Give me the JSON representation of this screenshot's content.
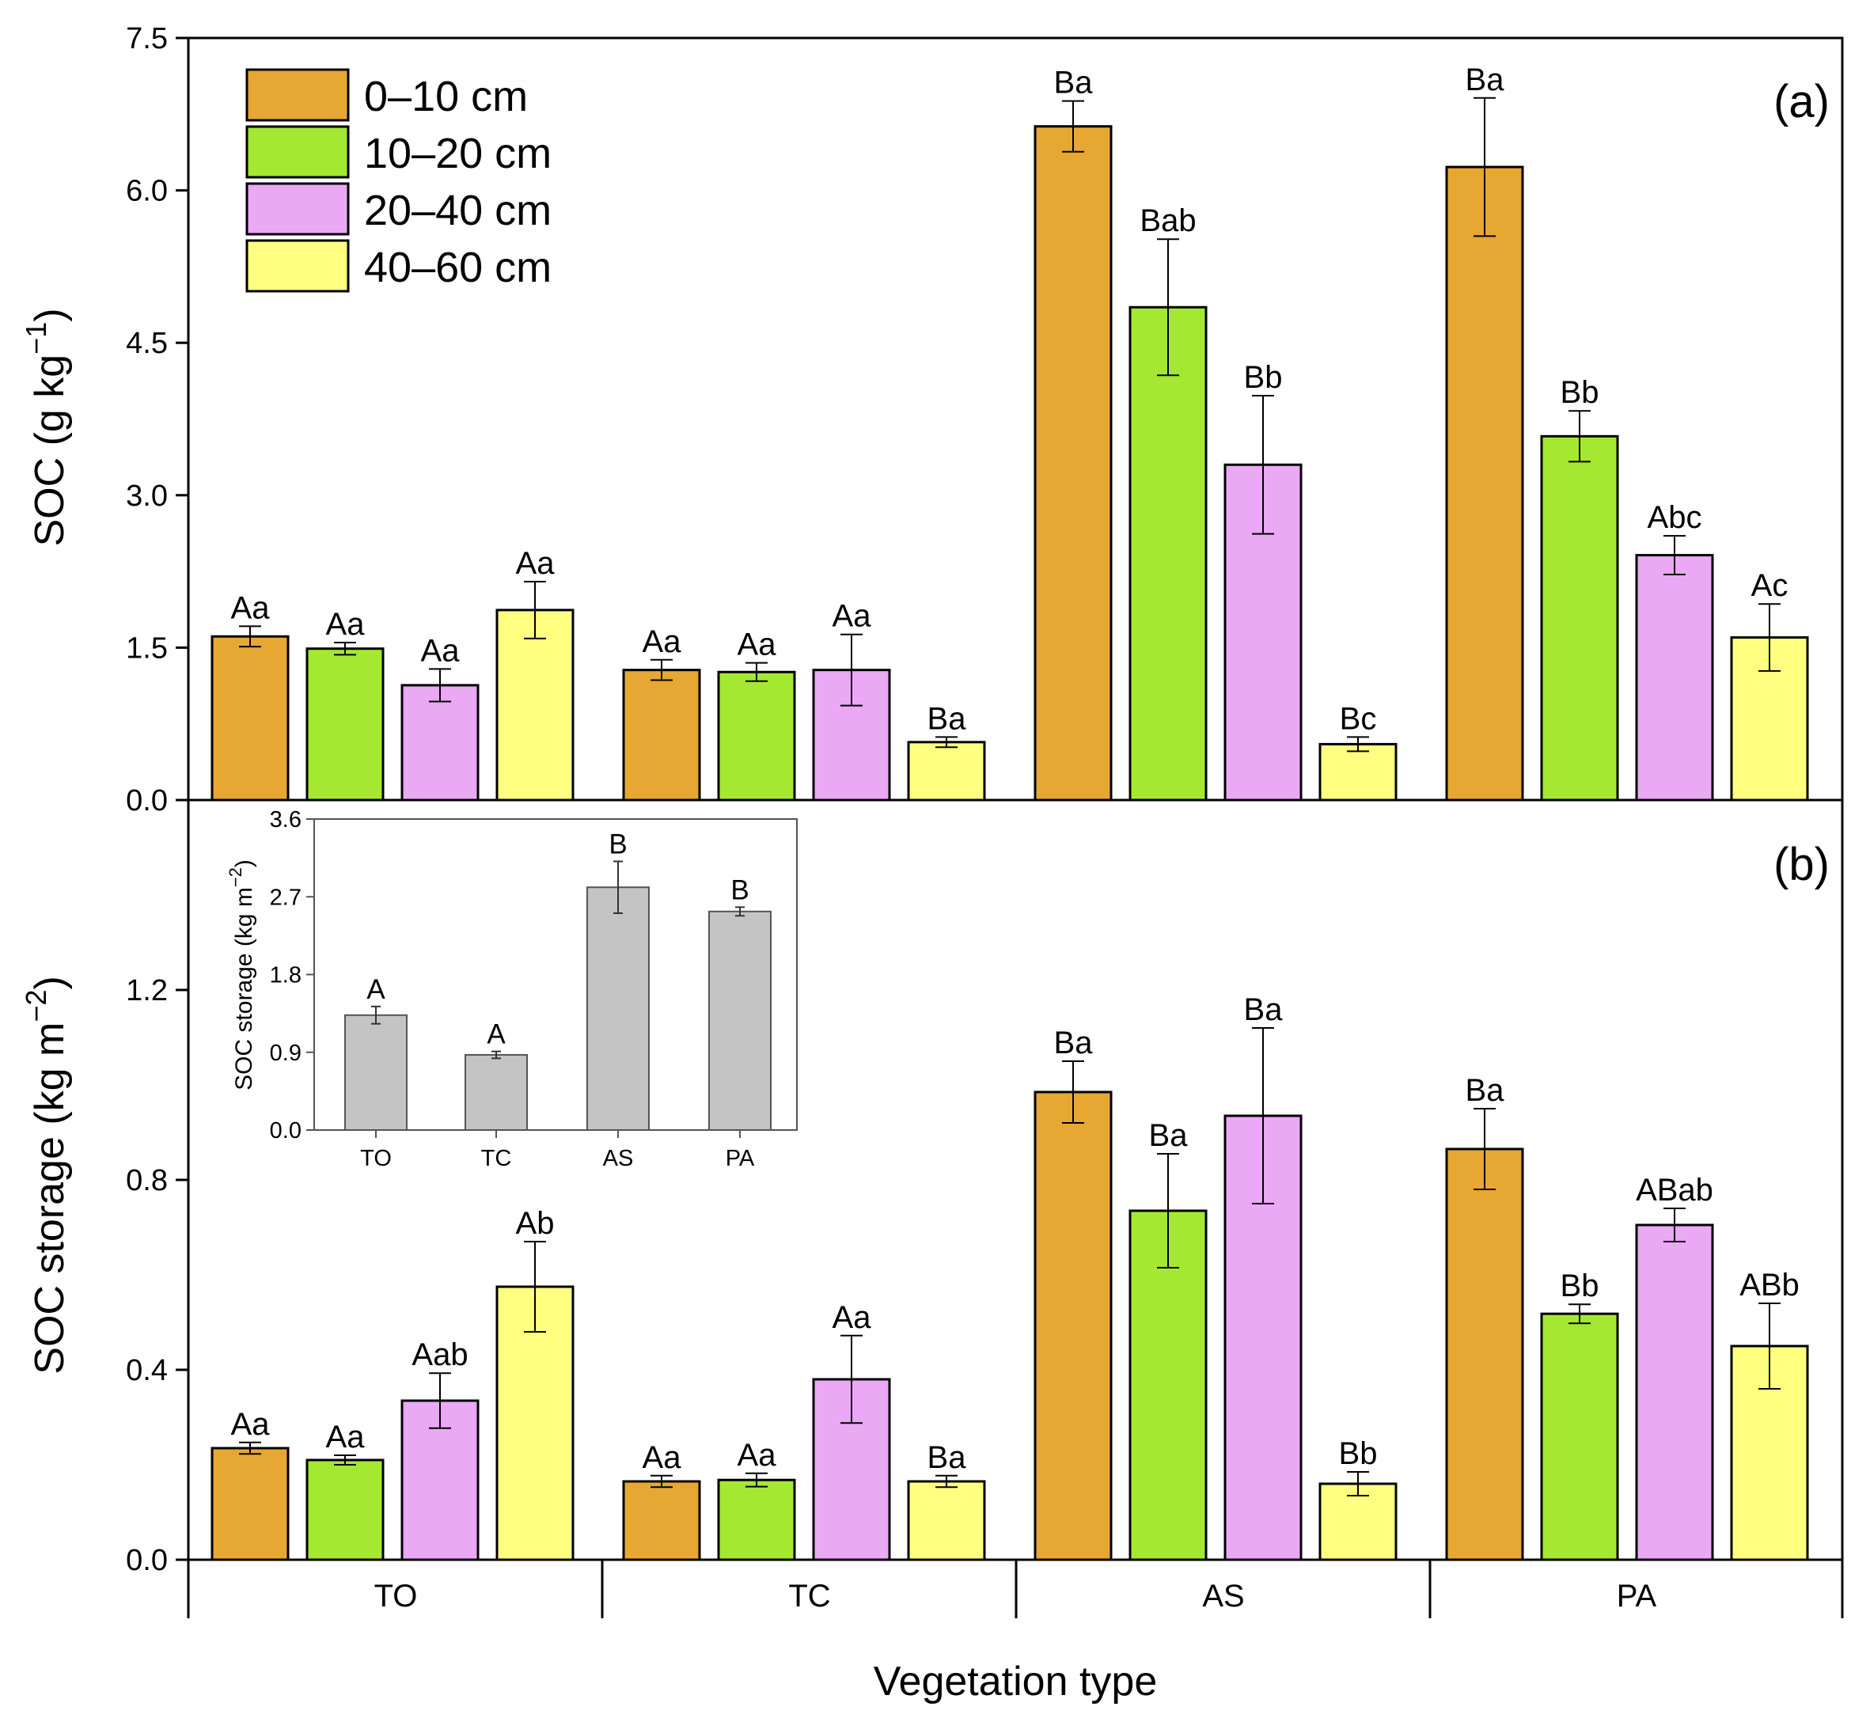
{
  "colors": {
    "0-10": "#E6A832",
    "10-20": "#A4E832",
    "20-40": "#EAA8F5",
    "40-60": "#FFFF80",
    "inset_bar": "#C4C4C4"
  },
  "legend": [
    "0–10 cm",
    "10–20 cm",
    "20–40 cm",
    "40–60 cm"
  ],
  "xlabel": "Vegetation type",
  "categories": [
    "TO",
    "TC",
    "AS",
    "PA"
  ],
  "chart_data": [
    {
      "type": "bar",
      "panel_label": "(a)",
      "ylabel": "SOC (g kg−1)",
      "ylabel_main": "SOC (g kg",
      "ylabel_sup": "−1",
      "ylabel_close": ")",
      "ylim": [
        0,
        7.5
      ],
      "yticks": [
        "0.0",
        "1.5",
        "3.0",
        "4.5",
        "6.0",
        "7.5"
      ],
      "tick_values": [
        0,
        1.5,
        3.0,
        4.5,
        6.0,
        7.5
      ],
      "categories": [
        "TO",
        "TC",
        "AS",
        "PA"
      ],
      "series": [
        {
          "name": "0–10 cm",
          "values": [
            1.61,
            1.28,
            6.63,
            6.23
          ],
          "errors": [
            0.1,
            0.1,
            0.25,
            0.68
          ],
          "labels": [
            "Aa",
            "Aa",
            "Ba",
            "Ba"
          ]
        },
        {
          "name": "10–20 cm",
          "values": [
            1.49,
            1.26,
            4.85,
            3.58
          ],
          "errors": [
            0.06,
            0.09,
            0.67,
            0.25
          ],
          "labels": [
            "Aa",
            "Aa",
            "Bab",
            "Bb"
          ]
        },
        {
          "name": "20–40 cm",
          "values": [
            1.13,
            1.28,
            3.3,
            2.41
          ],
          "errors": [
            0.16,
            0.35,
            0.68,
            0.19
          ],
          "labels": [
            "Aa",
            "Aa",
            "Bb",
            "Abc"
          ]
        },
        {
          "name": "40–60 cm",
          "values": [
            1.87,
            0.57,
            0.55,
            1.6
          ],
          "errors": [
            0.28,
            0.05,
            0.07,
            0.33
          ],
          "labels": [
            "Aa",
            "Ba",
            "Bc",
            "Ac"
          ]
        }
      ]
    },
    {
      "type": "bar",
      "panel_label": "(b)",
      "ylabel": "SOC storage (kg m−2)",
      "ylabel_main": "SOC storage (kg m",
      "ylabel_sup": "−2",
      "ylabel_close": ")",
      "ylim": [
        0,
        1.6
      ],
      "yticks": [
        "0.0",
        "0.4",
        "0.8",
        "1.2"
      ],
      "tick_values": [
        0,
        0.4,
        0.8,
        1.2
      ],
      "categories": [
        "TO",
        "TC",
        "AS",
        "PA"
      ],
      "series": [
        {
          "name": "0–10 cm",
          "values": [
            0.235,
            0.165,
            0.985,
            0.865
          ],
          "errors": [
            0.012,
            0.012,
            0.065,
            0.085
          ],
          "labels": [
            "Aa",
            "Aa",
            "Ba",
            "Ba"
          ]
        },
        {
          "name": "10–20 cm",
          "values": [
            0.21,
            0.168,
            0.735,
            0.518
          ],
          "errors": [
            0.01,
            0.014,
            0.12,
            0.02
          ],
          "labels": [
            "Aa",
            "Aa",
            "Ba",
            "Bb"
          ]
        },
        {
          "name": "20–40 cm",
          "values": [
            0.335,
            0.38,
            0.935,
            0.705
          ],
          "errors": [
            0.058,
            0.092,
            0.185,
            0.035
          ],
          "labels": [
            "Aab",
            "Aa",
            "Ba",
            "ABab"
          ]
        },
        {
          "name": "40–60 cm",
          "values": [
            0.575,
            0.165,
            0.16,
            0.45
          ],
          "errors": [
            0.095,
            0.012,
            0.025,
            0.09
          ],
          "labels": [
            "Ab",
            "Ba",
            "Bb",
            "ABb"
          ]
        }
      ]
    },
    {
      "type": "bar",
      "panel": "inset",
      "ylabel": "SOC storage (kg m−2)",
      "ylabel_main": "SOC storage (kg m",
      "ylabel_sup": "−2",
      "ylabel_close": ")",
      "ylim": [
        0,
        3.6
      ],
      "yticks": [
        "0.0",
        "0.9",
        "1.8",
        "2.7",
        "3.6"
      ],
      "tick_values": [
        0,
        0.9,
        1.8,
        2.7,
        3.6
      ],
      "categories": [
        "TO",
        "TC",
        "AS",
        "PA"
      ],
      "values": [
        1.33,
        0.87,
        2.81,
        2.53
      ],
      "errors": [
        0.1,
        0.04,
        0.3,
        0.05
      ],
      "labels": [
        "A",
        "A",
        "B",
        "B"
      ]
    }
  ]
}
